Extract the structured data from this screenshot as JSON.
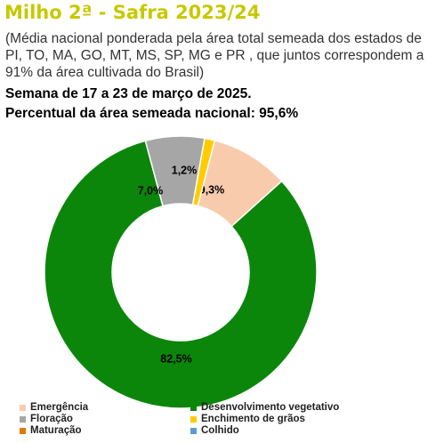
{
  "header": {
    "title": "Milho 2ª - Safra 2023/24",
    "subtitle": "(Média nacional ponderada pela área total semeada dos estados de PI, TO, MA, GO, MT, MS, SP, MG e PR , que juntos correspondem a 91% da área cultivada do Brasil)",
    "week": "Semana de 17 a 23 de março de 2025.",
    "percent_sown": "Percentual da área semeada nacional: 95,6%"
  },
  "chart_data": {
    "type": "pie",
    "variant": "donut",
    "title": "Milho 2ª - Safra 2023/24",
    "slices": [
      {
        "name": "Emergência",
        "value": 9.3,
        "label": "9,3%",
        "color": "#f8cbad"
      },
      {
        "name": "Desenvolvimento vegetativo",
        "value": 82.5,
        "label": "82,5%",
        "color": "#0b860b"
      },
      {
        "name": "Floração",
        "value": 7.0,
        "label": "7,0%",
        "color": "#a6a6a6"
      },
      {
        "name": "Enchimento de grãos",
        "value": 1.2,
        "label": "1,2%",
        "color": "#ffcc00"
      },
      {
        "name": "Maturação",
        "value": 0,
        "label": "",
        "color": "#e07b00"
      },
      {
        "name": "Colhido",
        "value": 0,
        "label": "",
        "color": "#5b9bd5"
      }
    ],
    "legend": [
      {
        "name": "Emergência",
        "color": "#f8cbad"
      },
      {
        "name": "Desenvolvimento vegetativo",
        "color": "#0b860b"
      },
      {
        "name": "Floração",
        "color": "#a6a6a6"
      },
      {
        "name": "Enchimento de grãos",
        "color": "#ffcc00"
      },
      {
        "name": "Maturação",
        "color": "#e07b00"
      },
      {
        "name": "Colhido",
        "color": "#5b9bd5"
      }
    ],
    "legend_position": "bottom"
  }
}
